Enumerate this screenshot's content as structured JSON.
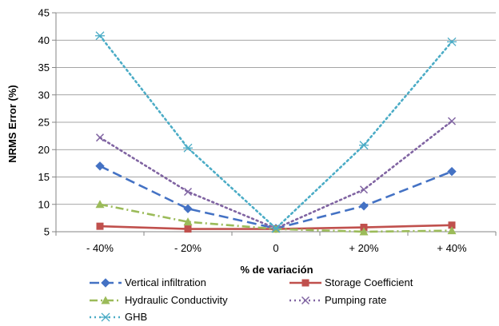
{
  "chart_data": {
    "type": "line",
    "title": "",
    "xlabel": "% de variación",
    "ylabel": "NRMS Error (%)",
    "categories": [
      "- 40%",
      "- 20%",
      "0",
      "+ 20%",
      "+ 40%"
    ],
    "ylim": [
      5,
      45
    ],
    "yticks": [
      5,
      10,
      15,
      20,
      25,
      30,
      35,
      40,
      45
    ],
    "grid": true,
    "legend_position": "bottom",
    "series": [
      {
        "name": "Vertical infiltration",
        "values": [
          17.0,
          9.2,
          5.6,
          9.7,
          16.0
        ],
        "color": "#4472C4",
        "marker": "diamond",
        "dash": "long-dash"
      },
      {
        "name": "Storage Coefficient",
        "values": [
          6.0,
          5.5,
          5.5,
          5.8,
          6.2
        ],
        "color": "#C0504D",
        "marker": "square",
        "dash": "solid"
      },
      {
        "name": "Hydraulic Conductivity",
        "values": [
          10.0,
          6.8,
          5.5,
          5.0,
          5.2
        ],
        "color": "#9BBB59",
        "marker": "triangle",
        "dash": "dash-dot"
      },
      {
        "name": "Pumping rate",
        "values": [
          22.2,
          12.3,
          5.6,
          12.7,
          25.2
        ],
        "color": "#8064A2",
        "marker": "x",
        "dash": "dot"
      },
      {
        "name": "GHB",
        "values": [
          40.8,
          20.3,
          5.6,
          20.8,
          39.7
        ],
        "color": "#4BACC6",
        "marker": "star",
        "dash": "dot"
      }
    ]
  }
}
